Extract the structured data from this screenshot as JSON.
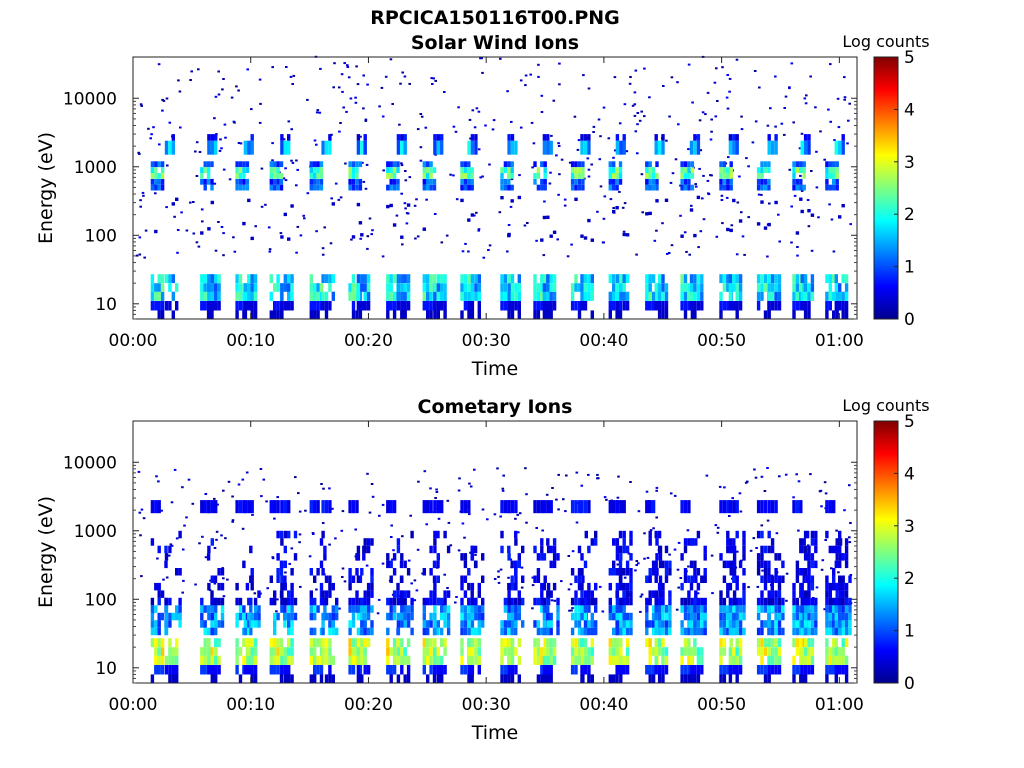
{
  "figure_title": "RPCICA150116T00.PNG",
  "chart_data": [
    {
      "type": "heatmap",
      "title": "Solar Wind Ions",
      "xlabel": "Time",
      "ylabel": "Energy (eV)",
      "x_ticks": [
        "00:00",
        "00:10",
        "00:20",
        "00:30",
        "00:40",
        "00:50",
        "01:00"
      ],
      "x_range_minutes": [
        0,
        61.5
      ],
      "y_scale": "log",
      "y_ticks": [
        "10",
        "100",
        "1000",
        "10000"
      ],
      "y_range": [
        6,
        40000
      ],
      "colorbar": {
        "label": "Log counts",
        "range": [
          0,
          5
        ],
        "ticks": [
          "0",
          "1",
          "2",
          "3",
          "4",
          "5"
        ],
        "colormap": "jet"
      },
      "pulse_times_minutes": [
        1.5,
        2.7,
        5.7,
        6.3,
        8.7,
        9.4,
        11.6,
        12.5,
        15,
        16,
        18.3,
        19,
        21.5,
        22.4,
        24.6,
        25.5,
        27.8,
        28.4,
        31.2,
        31.8,
        34,
        34.8,
        37.2,
        38,
        40.4,
        41,
        43.5,
        44.3,
        46.5,
        47.3,
        49.8,
        50.6,
        53,
        53.9,
        56,
        56.7,
        58.8,
        59.6
      ],
      "bands": {
        "sw_high_eV": [
          1500,
          3000
        ],
        "sw_mid_eV": [
          450,
          1200
        ],
        "low_eV": [
          8,
          30
        ]
      }
    },
    {
      "type": "heatmap",
      "title": "Cometary Ions",
      "xlabel": "Time",
      "ylabel": "Energy (eV)",
      "x_ticks": [
        "00:00",
        "00:10",
        "00:20",
        "00:30",
        "00:40",
        "00:50",
        "01:00"
      ],
      "x_range_minutes": [
        0,
        61.5
      ],
      "y_scale": "log",
      "y_ticks": [
        "10",
        "100",
        "1000",
        "10000"
      ],
      "y_range": [
        6,
        40000
      ],
      "colorbar": {
        "label": "Log counts",
        "range": [
          0,
          5
        ],
        "ticks": [
          "0",
          "1",
          "2",
          "3",
          "4",
          "5"
        ],
        "colormap": "jet"
      },
      "pulse_times_minutes": [
        1.5,
        2.7,
        5.7,
        6.3,
        8.7,
        9.4,
        11.6,
        12.5,
        15,
        16,
        18.3,
        19,
        21.5,
        22.4,
        24.6,
        25.5,
        27.8,
        28.4,
        31.2,
        31.8,
        34,
        34.8,
        37.2,
        38,
        40.4,
        41,
        43.5,
        44.3,
        46.5,
        47.3,
        49.8,
        50.6,
        53,
        53.9,
        56,
        56.7,
        58.8,
        59.6
      ],
      "bands": {
        "high_eV": [
          1800,
          2800
        ],
        "mid_eV": [
          30,
          1000
        ],
        "low_eV": [
          8,
          30
        ]
      }
    }
  ]
}
